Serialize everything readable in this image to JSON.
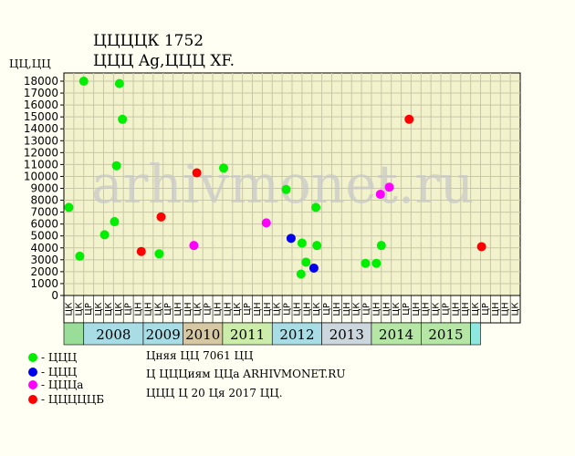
{
  "header": {
    "title": "ЦЦЦЦК 1752",
    "subtitle": "ЦЦЦ Ag,ЦЦЦ XF."
  },
  "watermark": "arhivmonet.ru",
  "legend": [
    {
      "label": "- ЦЦЦ",
      "color": "#00ee00"
    },
    {
      "label": "- ЦЦЦ",
      "color": "#0000ee"
    },
    {
      "label": "- ЦЦЦа",
      "color": "#ff00ff"
    },
    {
      "label": "- ЦЦЦЦЦБ",
      "color": "#ff0000"
    }
  ],
  "footer": [
    "Цняя ЦЦ 7061 ЦЦ",
    "Ц ЦЦЦиям ЦЦа ARHIVMONET.RU",
    "ЦЦЦ Ц 20 Ця 2017 ЦЦ."
  ],
  "chart_data": {
    "type": "scatter",
    "title": "ЦЦЦЦК 1752",
    "ylabel": "ЦЦ,ЦЦ",
    "ylim": [
      0,
      18000
    ],
    "grid": true,
    "y_ticks": [
      0,
      1000,
      2000,
      3000,
      4000,
      5000,
      6000,
      7000,
      8000,
      9000,
      10000,
      11000,
      12000,
      13000,
      14000,
      15000,
      16000,
      17000,
      18000
    ],
    "slot_labels": [
      "ЦК",
      "ЦК",
      "ЦР",
      "ЦК",
      "ЦК",
      "ЦК",
      "ЦР",
      "ЦН",
      "ЦН",
      "ЦК",
      "ЦР",
      "ЦН",
      "ЦН",
      "ЦК",
      "ЦР",
      "ЦН",
      "ЦН",
      "ЦК",
      "ЦР",
      "ЦН",
      "ЦН",
      "ЦК",
      "ЦР",
      "ЦН",
      "ЦН",
      "ЦК",
      "ЦР",
      "ЦН",
      "ЦН",
      "ЦК",
      "ЦР",
      "ЦН",
      "ЦН",
      "ЦК",
      "ЦР",
      "ЦН",
      "ЦН",
      "ЦК",
      "ЦР",
      "ЦН",
      "ЦН",
      "ЦК",
      "ЦР",
      "ЦН",
      "ЦН",
      "ЦК"
    ],
    "year_bands": [
      {
        "label": "",
        "start": 0,
        "end": 2,
        "color": "#99dd99"
      },
      {
        "label": "2008",
        "start": 2,
        "end": 8,
        "color": "#a8dde6"
      },
      {
        "label": "2009",
        "start": 8,
        "end": 12,
        "color": "#a8dde6"
      },
      {
        "label": "2010",
        "start": 12,
        "end": 16,
        "color": "#d6c8a2"
      },
      {
        "label": "2011",
        "start": 16,
        "end": 21,
        "color": "#ccecaa"
      },
      {
        "label": "2012",
        "start": 21,
        "end": 26,
        "color": "#a8dde6"
      },
      {
        "label": "2013",
        "start": 26,
        "end": 31,
        "color": "#ccd6dd"
      },
      {
        "label": "2014",
        "start": 31,
        "end": 36,
        "color": "#b6e6a6"
      },
      {
        "label": "2015",
        "start": 36,
        "end": 41,
        "color": "#b6e6a6"
      },
      {
        "label": "",
        "start": 41,
        "end": 42,
        "color": "#8ee8e0"
      }
    ],
    "series": [
      {
        "color": "#00ee00",
        "points": [
          {
            "x": 0.5,
            "y": 7400
          },
          {
            "x": 1.6,
            "y": 3300
          },
          {
            "x": 2.0,
            "y": 18000
          },
          {
            "x": 4.1,
            "y": 5100
          },
          {
            "x": 5.1,
            "y": 6200
          },
          {
            "x": 5.3,
            "y": 10900
          },
          {
            "x": 5.6,
            "y": 17800
          },
          {
            "x": 5.9,
            "y": 14800
          },
          {
            "x": 9.6,
            "y": 3500
          },
          {
            "x": 16.1,
            "y": 10700
          },
          {
            "x": 22.4,
            "y": 8900
          },
          {
            "x": 24.0,
            "y": 4400
          },
          {
            "x": 24.4,
            "y": 2800
          },
          {
            "x": 23.9,
            "y": 1800
          },
          {
            "x": 25.4,
            "y": 7400
          },
          {
            "x": 25.5,
            "y": 4200
          },
          {
            "x": 30.4,
            "y": 2700
          },
          {
            "x": 31.5,
            "y": 2700
          },
          {
            "x": 32.0,
            "y": 4200
          }
        ]
      },
      {
        "color": "#0000ee",
        "points": [
          {
            "x": 22.9,
            "y": 4800
          },
          {
            "x": 25.2,
            "y": 2300
          }
        ]
      },
      {
        "color": "#ff00ff",
        "points": [
          {
            "x": 13.1,
            "y": 4200
          },
          {
            "x": 20.4,
            "y": 6100
          },
          {
            "x": 31.9,
            "y": 8500
          },
          {
            "x": 32.8,
            "y": 9100
          }
        ]
      },
      {
        "color": "#ff0000",
        "points": [
          {
            "x": 7.8,
            "y": 3700
          },
          {
            "x": 9.8,
            "y": 6600
          },
          {
            "x": 13.4,
            "y": 10300
          },
          {
            "x": 34.8,
            "y": 14800
          },
          {
            "x": 42.1,
            "y": 4100
          }
        ]
      }
    ]
  }
}
